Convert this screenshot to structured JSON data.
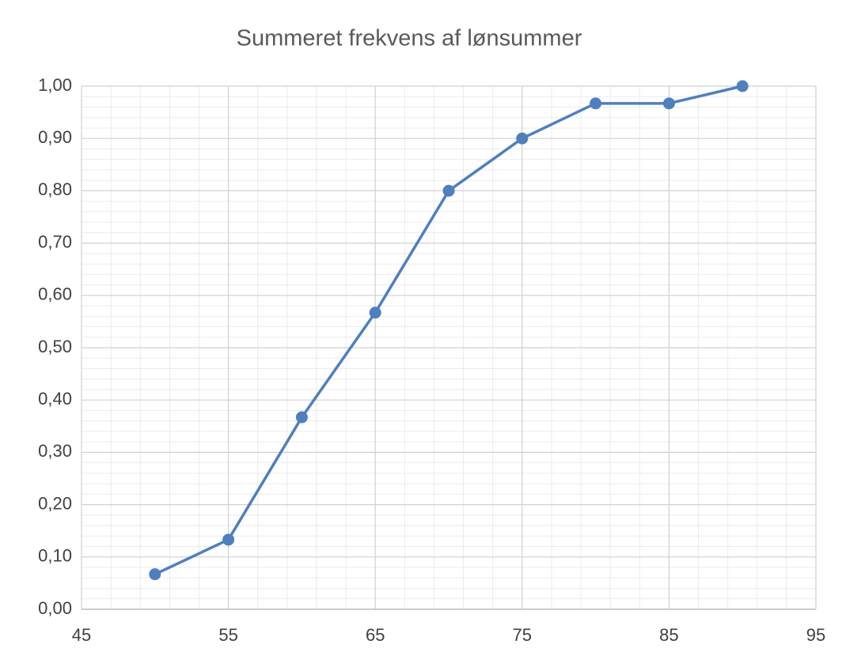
{
  "chart_data": {
    "type": "line",
    "title": "Summeret frekvens af lønsummer",
    "x": [
      50,
      55,
      60,
      65,
      70,
      75,
      80,
      85,
      90
    ],
    "series": [
      {
        "name": "Summeret frekvens",
        "color": "#4f7fbd",
        "values": [
          0.067,
          0.133,
          0.367,
          0.567,
          0.8,
          0.9,
          0.967,
          0.967,
          1.0
        ]
      }
    ],
    "xlim": [
      45,
      95
    ],
    "xticks": [
      45,
      55,
      65,
      75,
      85,
      95
    ],
    "ylim": [
      0,
      1
    ],
    "yticks": [
      {
        "value": 0,
        "label": "0,00"
      },
      {
        "value": 0.1,
        "label": "0,10"
      },
      {
        "value": 0.2,
        "label": "0,20"
      },
      {
        "value": 0.3,
        "label": "0,30"
      },
      {
        "value": 0.4,
        "label": "0,40"
      },
      {
        "value": 0.5,
        "label": "0,50"
      },
      {
        "value": 0.6,
        "label": "0,60"
      },
      {
        "value": 0.7,
        "label": "0,70"
      },
      {
        "value": 0.8,
        "label": "0,80"
      },
      {
        "value": 0.9,
        "label": "0,90"
      },
      {
        "value": 1,
        "label": "1,00"
      }
    ],
    "grid": true,
    "minor_grid": true,
    "legend": false
  }
}
